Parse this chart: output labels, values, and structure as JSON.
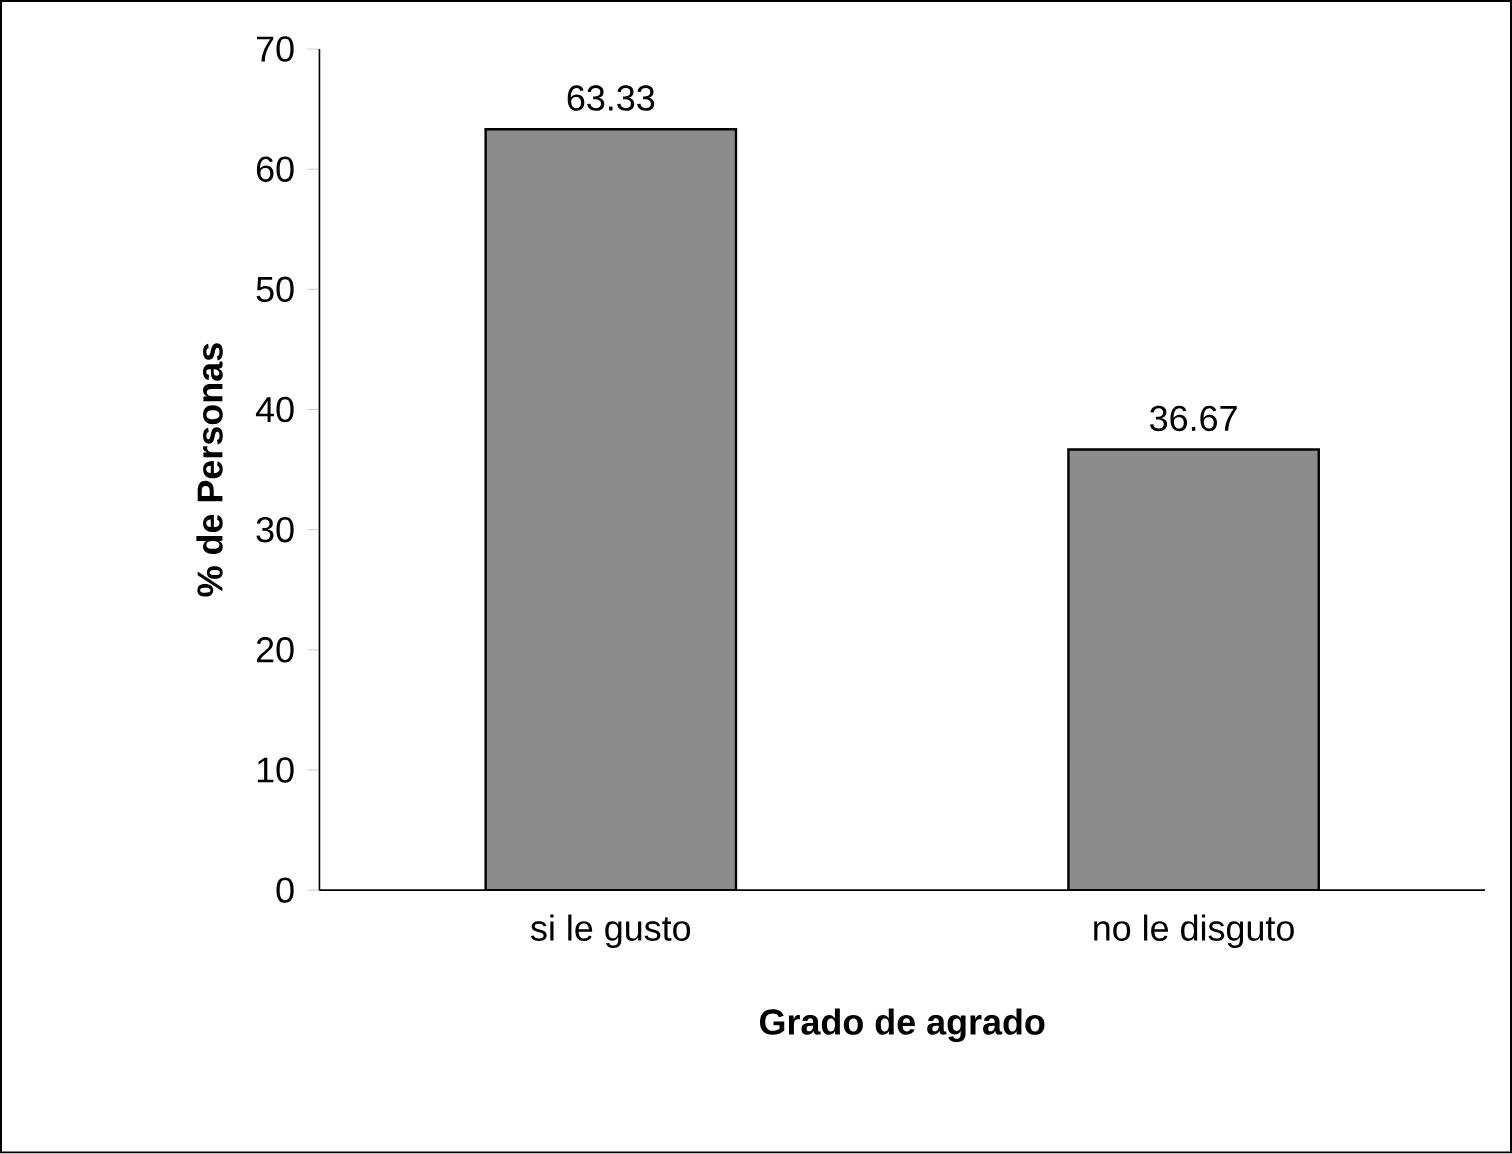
{
  "chart_data": {
    "type": "bar",
    "xlabel": "Grado de agrado",
    "ylabel": "% de Personas",
    "categories": [
      "si le gusto",
      "no le disguto"
    ],
    "values": [
      63.33,
      36.67
    ],
    "color": "#8c8c8c",
    "ylim": [
      0,
      70
    ],
    "yticks": [
      0,
      10,
      20,
      30,
      40,
      50,
      60,
      70
    ],
    "grid": false,
    "data_labels": true
  }
}
